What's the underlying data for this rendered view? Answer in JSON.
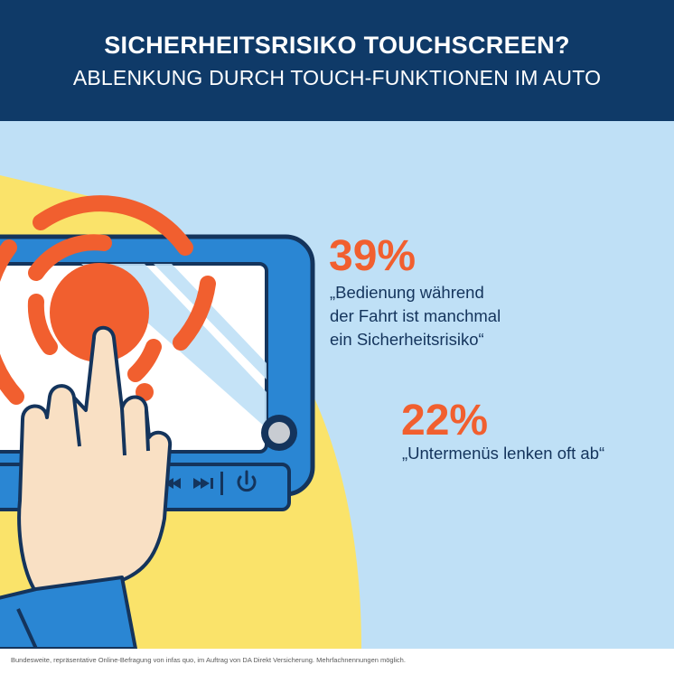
{
  "header": {
    "title": "SICHERHEITSRISIKO TOUCHSCREEN?",
    "subtitle": "ABLENKUNG DURCH TOUCH-FUNKTIONEN IM AUTO"
  },
  "stats": [
    {
      "value": "39%",
      "quote_lines": [
        "„Bedienung während",
        "der Fahrt ist manchmal",
        "ein Sicherheitsrisiko“"
      ]
    },
    {
      "value": "22%",
      "quote_lines": [
        "„Untermenüs lenken oft ab“"
      ]
    }
  ],
  "footer": {
    "note": "Bundesweite, repräsentative Online-Befragung von infas quo, im Auftrag von DA Direkt Versicherung. Mehrfachnennungen möglich."
  },
  "icons": [
    "previous-track-icon",
    "next-track-icon",
    "power-icon",
    "touch-ripple-icon",
    "pointing-hand-icon",
    "volume-knob-icon"
  ],
  "colors": {
    "header_bg": "#0f3a68",
    "panel_bg": "#bfe0f6",
    "accent_orange": "#f15f2f",
    "accent_yellow": "#fae36a",
    "device_blue": "#2a86d3",
    "text_navy": "#14345c"
  }
}
